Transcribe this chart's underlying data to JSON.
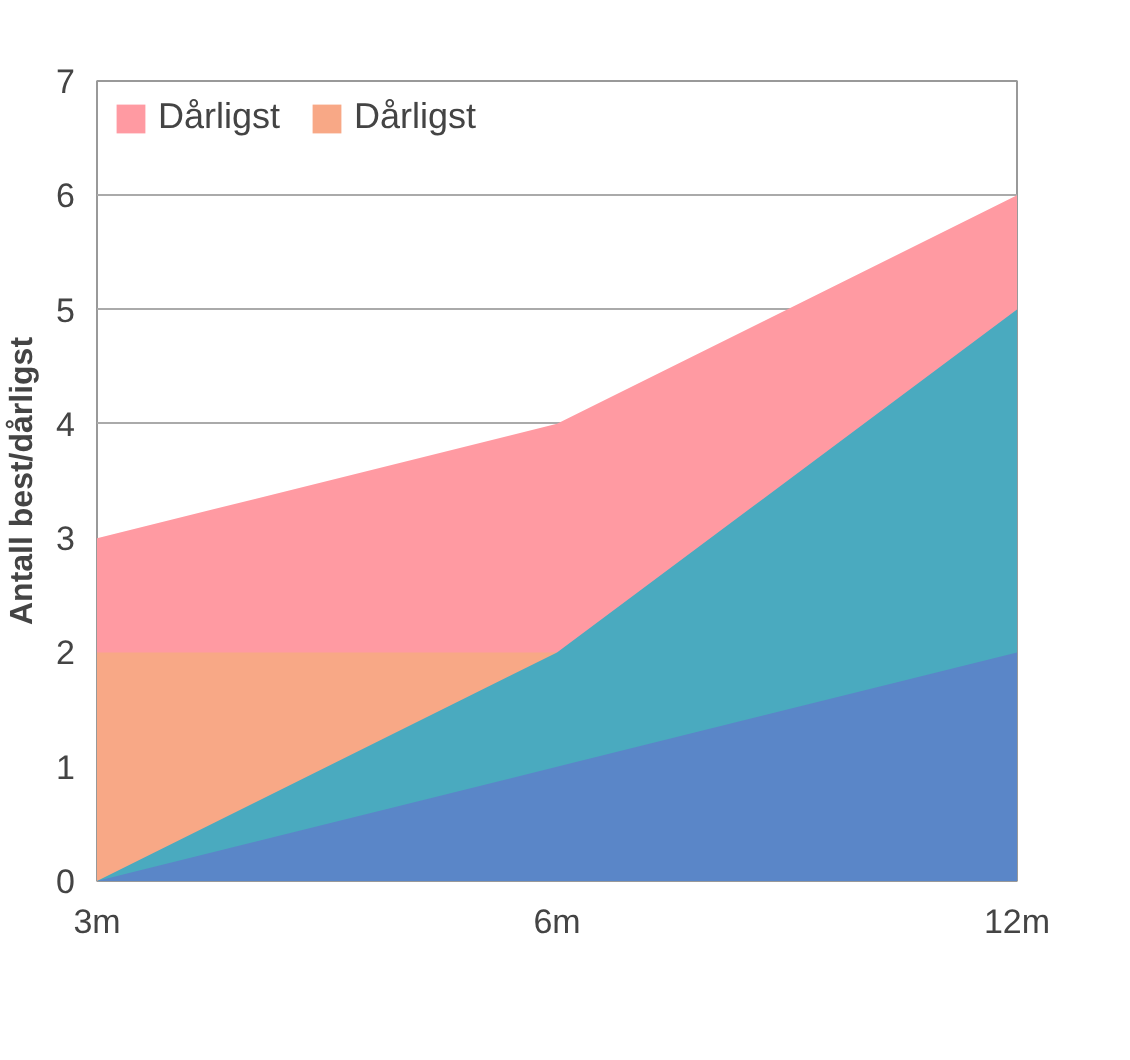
{
  "chart_data": {
    "type": "area",
    "ylabel": "Antall best/dårligst",
    "categories": [
      "3m",
      "6m",
      "12m"
    ],
    "series": [
      {
        "name": "Dårligst",
        "color": "#ff9aa2",
        "values": [
          3,
          4,
          6
        ]
      },
      {
        "name": "Dårligst",
        "color": "#f8a886",
        "values": [
          2,
          2,
          null
        ]
      },
      {
        "color": "#4aaabf",
        "values": [
          0,
          2,
          5
        ]
      },
      {
        "color": "#5a86c8",
        "values": [
          0,
          1,
          2
        ]
      }
    ],
    "ylim": [
      0,
      7
    ],
    "yticks": [
      0,
      1,
      2,
      3,
      4,
      5,
      6,
      7
    ],
    "grid": "y",
    "legend": "top left"
  }
}
